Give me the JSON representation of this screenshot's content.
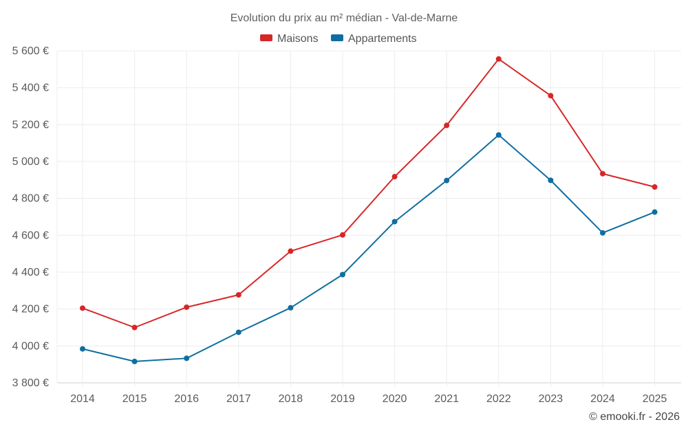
{
  "chart_data": {
    "type": "line",
    "title": "Evolution du prix au m² médian - Val-de-Marne",
    "xlabel": "",
    "ylabel": "",
    "categories": [
      "2014",
      "2015",
      "2016",
      "2017",
      "2018",
      "2019",
      "2020",
      "2021",
      "2022",
      "2023",
      "2024",
      "2025"
    ],
    "series": [
      {
        "name": "Maisons",
        "color": "#d62728",
        "values": [
          4205,
          4100,
          4210,
          4277,
          4514,
          4602,
          4918,
          5196,
          5556,
          5357,
          4934,
          4862
        ]
      },
      {
        "name": "Appartements",
        "color": "#0f6ea0",
        "values": [
          3984,
          3916,
          3933,
          4074,
          4207,
          4387,
          4674,
          4897,
          5144,
          4898,
          4613,
          4726
        ]
      }
    ],
    "ylim": [
      3800,
      5600
    ],
    "yticks": [
      3800,
      4000,
      4200,
      4400,
      4600,
      4800,
      5000,
      5200,
      5400,
      5600
    ],
    "ytick_labels": [
      "3 800 €",
      "4 000 €",
      "4 200 €",
      "4 400 €",
      "4 600 €",
      "4 800 €",
      "5 000 €",
      "5 200 €",
      "5 400 €",
      "5 600 €"
    ],
    "grid": true,
    "legend": "top-center"
  },
  "credit": "© emooki.fr - 2026"
}
